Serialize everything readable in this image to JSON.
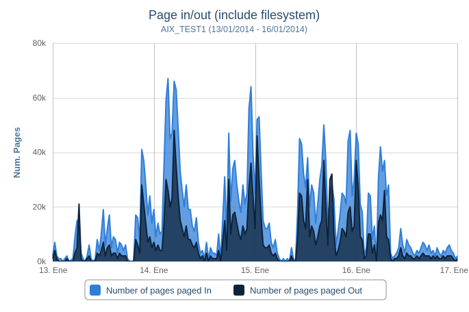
{
  "chart_data": {
    "type": "area",
    "title": "Page in/out (include filesystem)",
    "subtitle": "AIX_TEST1 (13/01/2014 - 16/01/2014)",
    "xlabel": "",
    "ylabel": "Num. Pages",
    "ylim": [
      0,
      80000
    ],
    "yticks": [
      "0k",
      "20k",
      "40k",
      "60k",
      "80k"
    ],
    "xticks": [
      "13. Ene",
      "14. Ene",
      "15. Ene",
      "16. Ene",
      "17. Ene"
    ],
    "x_range_days": [
      0,
      4
    ],
    "grid": true,
    "legend_position": "bottom",
    "colors": {
      "in": "#2f7ed8",
      "out": "#0d233a"
    },
    "series": [
      {
        "name": "Number of pages paged In",
        "x": [
          0,
          0.02,
          0.04,
          0.06,
          0.08,
          0.1,
          0.12,
          0.14,
          0.16,
          0.18,
          0.2,
          0.22,
          0.24,
          0.26,
          0.28,
          0.3,
          0.32,
          0.34,
          0.36,
          0.38,
          0.4,
          0.42,
          0.44,
          0.46,
          0.48,
          0.5,
          0.52,
          0.54,
          0.56,
          0.58,
          0.6,
          0.62,
          0.64,
          0.66,
          0.68,
          0.7,
          0.72,
          0.74,
          0.76,
          0.78,
          0.8,
          0.82,
          0.84,
          0.86,
          0.88,
          0.9,
          0.92,
          0.94,
          0.96,
          0.98,
          1.0,
          1.02,
          1.04,
          1.06,
          1.08,
          1.1,
          1.12,
          1.14,
          1.16,
          1.18,
          1.2,
          1.22,
          1.24,
          1.26,
          1.28,
          1.3,
          1.32,
          1.34,
          1.36,
          1.38,
          1.4,
          1.42,
          1.44,
          1.46,
          1.48,
          1.5,
          1.52,
          1.54,
          1.56,
          1.58,
          1.6,
          1.62,
          1.64,
          1.66,
          1.68,
          1.7,
          1.72,
          1.74,
          1.76,
          1.78,
          1.8,
          1.82,
          1.84,
          1.86,
          1.88,
          1.9,
          1.92,
          1.94,
          1.96,
          1.98,
          2.0,
          2.02,
          2.04,
          2.06,
          2.08,
          2.1,
          2.12,
          2.14,
          2.16,
          2.18,
          2.2,
          2.22,
          2.24,
          2.26,
          2.28,
          2.3,
          2.32,
          2.34,
          2.36,
          2.38,
          2.4,
          2.42,
          2.44,
          2.46,
          2.48,
          2.5,
          2.52,
          2.54,
          2.56,
          2.58,
          2.6,
          2.62,
          2.64,
          2.66,
          2.68,
          2.7,
          2.72,
          2.74,
          2.76,
          2.78,
          2.8,
          2.82,
          2.84,
          2.86,
          2.88,
          2.9,
          2.92,
          2.94,
          2.96,
          2.98,
          3.0,
          3.02,
          3.04,
          3.06,
          3.08,
          3.1,
          3.12,
          3.14,
          3.16,
          3.18,
          3.2,
          3.22,
          3.24,
          3.26,
          3.28,
          3.3,
          3.32,
          3.34,
          3.36,
          3.38,
          3.4,
          3.42,
          3.44,
          3.46,
          3.48,
          3.5,
          3.52,
          3.54,
          3.56,
          3.58,
          3.6,
          3.62,
          3.64,
          3.66,
          3.68,
          3.7,
          3.72,
          3.74,
          3.76,
          3.78,
          3.8,
          3.82,
          3.84,
          3.86,
          3.88,
          3.9,
          3.92,
          3.94,
          3.96,
          3.98,
          4.0
        ],
        "values": [
          2000,
          7000,
          2000,
          1000,
          1000,
          0,
          1000,
          2000,
          0,
          500,
          1000,
          9000,
          15000,
          12000,
          3000,
          1000,
          0,
          2000,
          6000,
          1000,
          0,
          1000,
          8000,
          4000,
          10000,
          19000,
          6000,
          12000,
          17000,
          5000,
          9000,
          8000,
          3000,
          7000,
          6000,
          4000,
          6000,
          1000,
          0,
          0,
          0,
          17000,
          16000,
          8000,
          41000,
          37000,
          28000,
          17000,
          24000,
          14000,
          19000,
          9000,
          14000,
          10000,
          11000,
          35000,
          59000,
          67000,
          45000,
          47000,
          66000,
          63000,
          49000,
          33000,
          26000,
          20000,
          28000,
          19000,
          19000,
          13000,
          11000,
          16000,
          7000,
          3000,
          4000,
          1000,
          7000,
          1000,
          5000,
          3000,
          3000,
          2000,
          10000,
          1000,
          15000,
          31000,
          10000,
          47000,
          22000,
          34000,
          37000,
          28000,
          22000,
          18000,
          28000,
          21000,
          25000,
          56000,
          64000,
          40000,
          25000,
          52000,
          53000,
          33000,
          15000,
          12000,
          12000,
          14000,
          7000,
          5000,
          8000,
          3000,
          1000,
          0,
          1000,
          0,
          1000,
          0,
          5000,
          1000,
          0,
          18000,
          45000,
          43000,
          32000,
          27000,
          38000,
          20000,
          28000,
          25000,
          14000,
          21000,
          30000,
          35000,
          50000,
          37000,
          14000,
          25000,
          28000,
          23000,
          6000,
          11000,
          17000,
          25000,
          24000,
          21000,
          44000,
          48000,
          24000,
          30000,
          47000,
          43000,
          21000,
          18000,
          2000,
          5000,
          25000,
          24000,
          8000,
          13000,
          0,
          31000,
          42000,
          33000,
          37000,
          24000,
          28000,
          3000,
          1000,
          2000,
          3000,
          5000,
          12000,
          6000,
          3000,
          8000,
          6000,
          5000,
          3000,
          2000,
          4000,
          3000,
          5000,
          7000,
          6000,
          4000,
          6000,
          3000,
          4000,
          2000,
          5000,
          3000,
          2000,
          4000,
          3000,
          5000,
          6000,
          4000,
          3000,
          1000,
          2000
        ]
      },
      {
        "name": "Number of pages paged Out",
        "x": [
          0,
          0.02,
          0.04,
          0.06,
          0.08,
          0.1,
          0.12,
          0.14,
          0.16,
          0.18,
          0.2,
          0.22,
          0.24,
          0.26,
          0.28,
          0.3,
          0.32,
          0.34,
          0.36,
          0.38,
          0.4,
          0.42,
          0.44,
          0.46,
          0.48,
          0.5,
          0.52,
          0.54,
          0.56,
          0.58,
          0.6,
          0.62,
          0.64,
          0.66,
          0.68,
          0.7,
          0.72,
          0.74,
          0.76,
          0.78,
          0.8,
          0.82,
          0.84,
          0.86,
          0.88,
          0.9,
          0.92,
          0.94,
          0.96,
          0.98,
          1.0,
          1.02,
          1.04,
          1.06,
          1.08,
          1.1,
          1.12,
          1.14,
          1.16,
          1.18,
          1.2,
          1.22,
          1.24,
          1.26,
          1.28,
          1.3,
          1.32,
          1.34,
          1.36,
          1.38,
          1.4,
          1.42,
          1.44,
          1.46,
          1.48,
          1.5,
          1.52,
          1.54,
          1.56,
          1.58,
          1.6,
          1.62,
          1.64,
          1.66,
          1.68,
          1.7,
          1.72,
          1.74,
          1.76,
          1.78,
          1.8,
          1.82,
          1.84,
          1.86,
          1.88,
          1.9,
          1.92,
          1.94,
          1.96,
          1.98,
          2.0,
          2.02,
          2.04,
          2.06,
          2.08,
          2.1,
          2.12,
          2.14,
          2.16,
          2.18,
          2.2,
          2.22,
          2.24,
          2.26,
          2.28,
          2.3,
          2.32,
          2.34,
          2.36,
          2.38,
          2.4,
          2.42,
          2.44,
          2.46,
          2.48,
          2.5,
          2.52,
          2.54,
          2.56,
          2.58,
          2.6,
          2.62,
          2.64,
          2.66,
          2.68,
          2.7,
          2.72,
          2.74,
          2.76,
          2.78,
          2.8,
          2.82,
          2.84,
          2.86,
          2.88,
          2.9,
          2.92,
          2.94,
          2.96,
          2.98,
          3.0,
          3.02,
          3.04,
          3.06,
          3.08,
          3.1,
          3.12,
          3.14,
          3.16,
          3.18,
          3.2,
          3.22,
          3.24,
          3.26,
          3.28,
          3.3,
          3.32,
          3.34,
          3.36,
          3.38,
          3.4,
          3.42,
          3.44,
          3.46,
          3.48,
          3.5,
          3.52,
          3.54,
          3.56,
          3.58,
          3.6,
          3.62,
          3.64,
          3.66,
          3.68,
          3.7,
          3.72,
          3.74,
          3.76,
          3.78,
          3.8,
          3.82,
          3.84,
          3.86,
          3.88,
          3.9,
          3.92,
          3.94,
          3.96,
          3.98,
          4.0
        ],
        "values": [
          1000,
          4000,
          1000,
          0,
          0,
          0,
          0,
          1000,
          0,
          0,
          0,
          3000,
          5000,
          21000,
          1000,
          0,
          0,
          1000,
          2000,
          0,
          0,
          0,
          3000,
          2000,
          4000,
          7000,
          2000,
          5000,
          6000,
          2000,
          3000,
          3000,
          1000,
          3000,
          2000,
          2000,
          2000,
          0,
          0,
          0,
          0,
          8000,
          6000,
          3000,
          28000,
          21000,
          14000,
          7000,
          9000,
          5000,
          7000,
          4000,
          6000,
          4000,
          4000,
          14000,
          30000,
          26000,
          20000,
          23000,
          48000,
          35000,
          24000,
          15000,
          12000,
          9000,
          13000,
          8000,
          8000,
          6000,
          5000,
          7000,
          3000,
          1000,
          2000,
          0,
          3000,
          0,
          2000,
          1000,
          1000,
          1000,
          4000,
          0,
          7000,
          15000,
          4000,
          30000,
          10000,
          17000,
          18000,
          14000,
          10000,
          8000,
          13000,
          10000,
          12000,
          27000,
          36000,
          24000,
          12000,
          46000,
          30000,
          16000,
          6000,
          5000,
          5000,
          6000,
          3000,
          2000,
          3000,
          1000,
          0,
          0,
          0,
          0,
          0,
          0,
          2000,
          0,
          0,
          8000,
          25000,
          24000,
          15000,
          12000,
          30000,
          9000,
          13000,
          11000,
          6000,
          9000,
          13000,
          15000,
          37000,
          20000,
          6000,
          30000,
          32000,
          10000,
          2000,
          4000,
          7000,
          12000,
          11000,
          9000,
          18000,
          20000,
          11000,
          13000,
          37000,
          27000,
          9000,
          8000,
          1000,
          2000,
          10000,
          10000,
          3000,
          6000,
          0,
          14000,
          17000,
          15000,
          26000,
          9000,
          8000,
          1000,
          0,
          1000,
          1000,
          2000,
          5000,
          2000,
          1000,
          3000,
          2000,
          2000,
          1000,
          1000,
          2000,
          1000,
          2000,
          3000,
          2000,
          2000,
          2000,
          1000,
          2000,
          1000,
          2000,
          1000,
          1000,
          2000,
          1000,
          2000,
          2000,
          2000,
          1000,
          0,
          1000
        ]
      }
    ]
  }
}
